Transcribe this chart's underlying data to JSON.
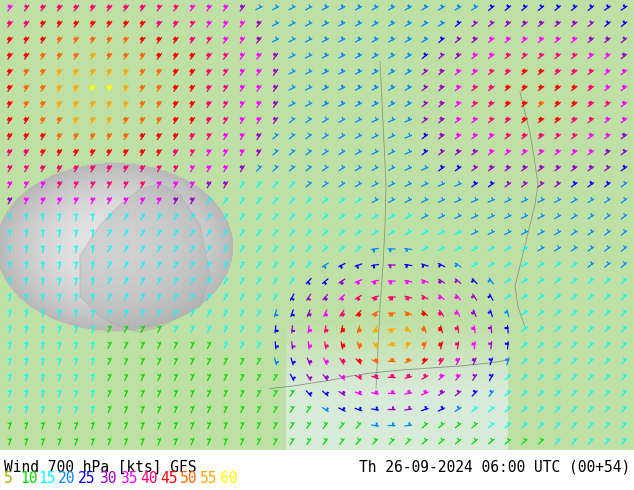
{
  "title_left": "Wind 700 hPa [kts] GFS",
  "title_right": "Th 26-09-2024 06:00 UTC (00+54)",
  "legend_values": [
    "5",
    "10",
    "15",
    "20",
    "25",
    "30",
    "35",
    "40",
    "45",
    "50",
    "55",
    "60"
  ],
  "legend_colors": [
    "#aaaa00",
    "#00dd00",
    "#00ffff",
    "#0088ff",
    "#0000ff",
    "#9900cc",
    "#ff00ff",
    "#ff0077",
    "#ff0000",
    "#ff6600",
    "#ffaa00",
    "#ffff00"
  ],
  "bg_color": "#ffffff",
  "title_color": "#000000",
  "title_fontsize": 10.5,
  "legend_fontsize": 10.5,
  "fig_width": 6.34,
  "fig_height": 4.9,
  "dpi": 100
}
